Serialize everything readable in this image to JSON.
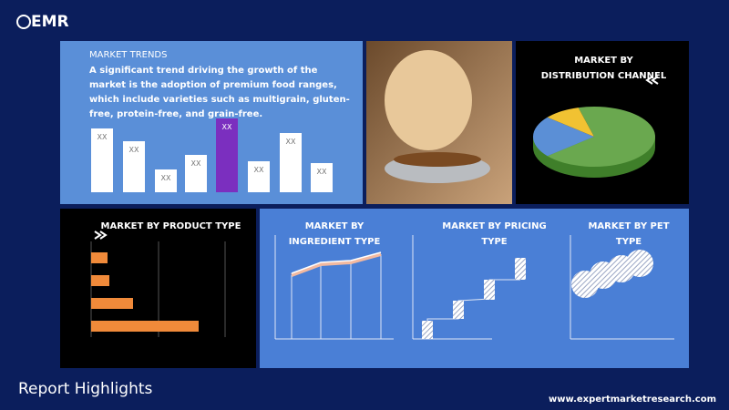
{
  "header": {
    "logo": "EMR"
  },
  "trends": {
    "title": "MARKET TRENDS",
    "text": "A significant trend driving the growth of the market is the adoption of premium food ranges, which include varieties such as multigrain, gluten-free, protein-free, and grain-free.",
    "bar_labels": [
      "XX",
      "XX",
      "XX",
      "XX",
      "XX",
      "XX",
      "XX",
      "XX"
    ]
  },
  "distribution": {
    "title": "MARKET BY DISTRIBUTION CHANNEL"
  },
  "product": {
    "title": "MARKET BY PRODUCT TYPE"
  },
  "ingredient": {
    "title": "MARKET BY INGREDIENT TYPE"
  },
  "pricing": {
    "title": "MARKET BY PRICING TYPE"
  },
  "pet": {
    "title": "MARKET BY PET TYPE"
  },
  "footer": {
    "title": "Report Highlights",
    "url": "www.expertmarketresearch.com"
  }
}
